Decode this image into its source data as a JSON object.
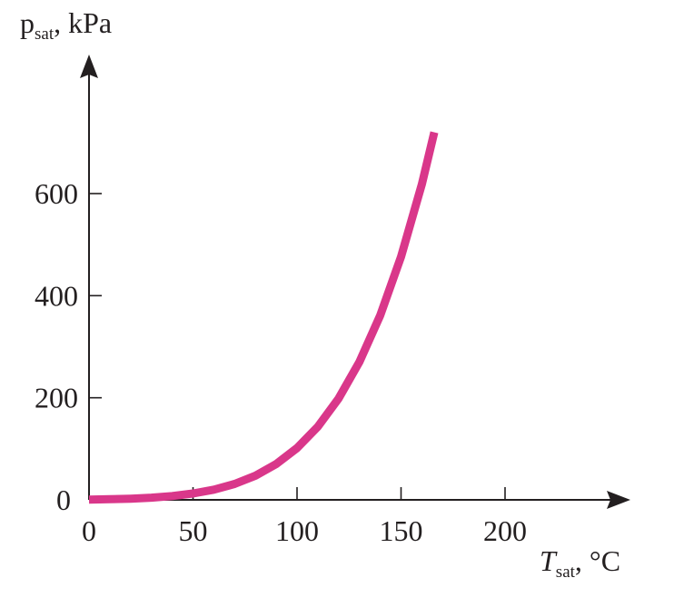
{
  "chart_data": {
    "type": "line",
    "ylabel": {
      "base": "p",
      "sub": "sat",
      "rest": ", kPa"
    },
    "xlabel": {
      "base": "T",
      "sub": "sat",
      "rest": ", °C"
    },
    "xlim": [
      0,
      250
    ],
    "ylim": [
      0,
      760
    ],
    "x_ticks": [
      0,
      50,
      100,
      150,
      200
    ],
    "y_ticks": [
      0,
      200,
      400,
      600
    ],
    "grid": false,
    "colors": {
      "curve": "#d9378a",
      "axis": "#231f20"
    },
    "series": [
      {
        "points": [
          [
            0,
            0.6
          ],
          [
            10,
            1.2
          ],
          [
            20,
            2.3
          ],
          [
            30,
            4.2
          ],
          [
            40,
            7.4
          ],
          [
            50,
            12.4
          ],
          [
            60,
            19.9
          ],
          [
            70,
            31.2
          ],
          [
            80,
            47.4
          ],
          [
            90,
            70.1
          ],
          [
            100,
            101.4
          ],
          [
            110,
            143.4
          ],
          [
            120,
            198.7
          ],
          [
            130,
            270.3
          ],
          [
            140,
            361.5
          ],
          [
            150,
            476.2
          ],
          [
            160,
            618.2
          ],
          [
            166,
            720
          ]
        ]
      }
    ]
  }
}
